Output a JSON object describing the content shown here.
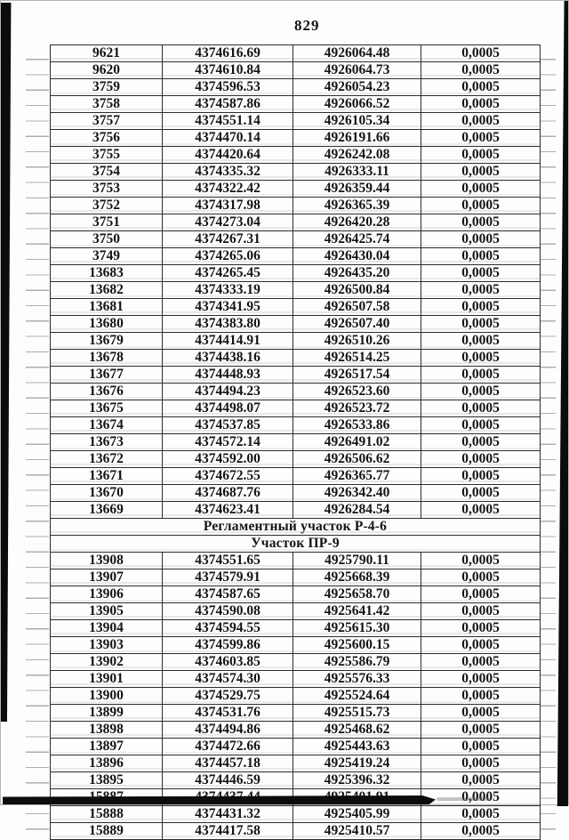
{
  "page": {
    "number": "829"
  },
  "colors": {
    "paper": "#fdfdfc",
    "ink": "#141414",
    "table_border": "#2c2c2c",
    "scan_bar": "#0c0c0c"
  },
  "table": {
    "rows": [
      {
        "cells": [
          "9621",
          "4374616.69",
          "4926064.48",
          "0,0005"
        ]
      },
      {
        "cells": [
          "9620",
          "4374610.84",
          "4926064.73",
          "0,0005"
        ]
      },
      {
        "cells": [
          "3759",
          "4374596.53",
          "4926054.23",
          "0,0005"
        ]
      },
      {
        "cells": [
          "3758",
          "4374587.86",
          "4926066.52",
          "0,0005"
        ]
      },
      {
        "cells": [
          "3757",
          "4374551.14",
          "4926105.34",
          "0,0005"
        ]
      },
      {
        "cells": [
          "3756",
          "4374470.14",
          "4926191.66",
          "0,0005"
        ]
      },
      {
        "cells": [
          "3755",
          "4374420.64",
          "4926242.08",
          "0,0005"
        ]
      },
      {
        "cells": [
          "3754",
          "4374335.32",
          "4926333.11",
          "0,0005"
        ]
      },
      {
        "cells": [
          "3753",
          "4374322.42",
          "4926359.44",
          "0,0005"
        ]
      },
      {
        "cells": [
          "3752",
          "4374317.98",
          "4926365.39",
          "0,0005"
        ]
      },
      {
        "cells": [
          "3751",
          "4374273.04",
          "4926420.28",
          "0,0005"
        ]
      },
      {
        "cells": [
          "3750",
          "4374267.31",
          "4926425.74",
          "0,0005"
        ]
      },
      {
        "cells": [
          "3749",
          "4374265.06",
          "4926430.04",
          "0,0005"
        ]
      },
      {
        "cells": [
          "13683",
          "4374265.45",
          "4926435.20",
          "0,0005"
        ]
      },
      {
        "cells": [
          "13682",
          "4374333.19",
          "4926500.84",
          "0,0005"
        ]
      },
      {
        "cells": [
          "13681",
          "4374341.95",
          "4926507.58",
          "0,0005"
        ]
      },
      {
        "cells": [
          "13680",
          "4374383.80",
          "4926507.40",
          "0,0005"
        ]
      },
      {
        "cells": [
          "13679",
          "4374414.91",
          "4926510.26",
          "0,0005"
        ]
      },
      {
        "cells": [
          "13678",
          "4374438.16",
          "4926514.25",
          "0,0005"
        ]
      },
      {
        "cells": [
          "13677",
          "4374448.93",
          "4926517.54",
          "0,0005"
        ]
      },
      {
        "cells": [
          "13676",
          "4374494.23",
          "4926523.60",
          "0,0005"
        ]
      },
      {
        "cells": [
          "13675",
          "4374498.07",
          "4926523.72",
          "0,0005"
        ]
      },
      {
        "cells": [
          "13674",
          "4374537.85",
          "4926533.86",
          "0,0005"
        ]
      },
      {
        "cells": [
          "13673",
          "4374572.14",
          "4926491.02",
          "0,0005"
        ]
      },
      {
        "cells": [
          "13672",
          "4374592.00",
          "4926506.62",
          "0,0005"
        ]
      },
      {
        "cells": [
          "13671",
          "4374672.55",
          "4926365.77",
          "0,0005"
        ]
      },
      {
        "cells": [
          "13670",
          "4374687.76",
          "4926342.40",
          "0,0005"
        ]
      },
      {
        "cells": [
          "13669",
          "4374623.41",
          "4926284.54",
          "0,0005"
        ]
      },
      {
        "section": "Регламентный участок Р-4-6"
      },
      {
        "section": "Участок ПР-9"
      },
      {
        "cells": [
          "13908",
          "4374551.65",
          "4925790.11",
          "0,0005"
        ]
      },
      {
        "cells": [
          "13907",
          "4374579.91",
          "4925668.39",
          "0,0005"
        ]
      },
      {
        "cells": [
          "13906",
          "4374587.65",
          "4925658.70",
          "0,0005"
        ]
      },
      {
        "cells": [
          "13905",
          "4374590.08",
          "4925641.42",
          "0,0005"
        ]
      },
      {
        "cells": [
          "13904",
          "4374594.55",
          "4925615.30",
          "0,0005"
        ]
      },
      {
        "cells": [
          "13903",
          "4374599.86",
          "4925600.15",
          "0,0005"
        ]
      },
      {
        "cells": [
          "13902",
          "4374603.85",
          "4925586.79",
          "0,0005"
        ]
      },
      {
        "cells": [
          "13901",
          "4374574.30",
          "4925576.33",
          "0,0005"
        ]
      },
      {
        "cells": [
          "13900",
          "4374529.75",
          "4925524.64",
          "0,0005"
        ]
      },
      {
        "cells": [
          "13899",
          "4374531.76",
          "4925515.73",
          "0,0005"
        ]
      },
      {
        "cells": [
          "13898",
          "4374494.86",
          "4925468.62",
          "0,0005"
        ]
      },
      {
        "cells": [
          "13897",
          "4374472.66",
          "4925443.63",
          "0,0005"
        ]
      },
      {
        "cells": [
          "13896",
          "4374457.18",
          "4925419.24",
          "0,0005"
        ]
      },
      {
        "cells": [
          "13895",
          "4374446.59",
          "4925396.32",
          "0,0005"
        ]
      },
      {
        "cells": [
          "15887",
          "4374437.44",
          "4925401.91",
          "0,0005"
        ]
      },
      {
        "cells": [
          "15888",
          "4374431.32",
          "4925405.99",
          "0,0005"
        ]
      },
      {
        "cells": [
          "15889",
          "4374417.58",
          "4925410.57",
          "0,0005"
        ]
      }
    ]
  }
}
